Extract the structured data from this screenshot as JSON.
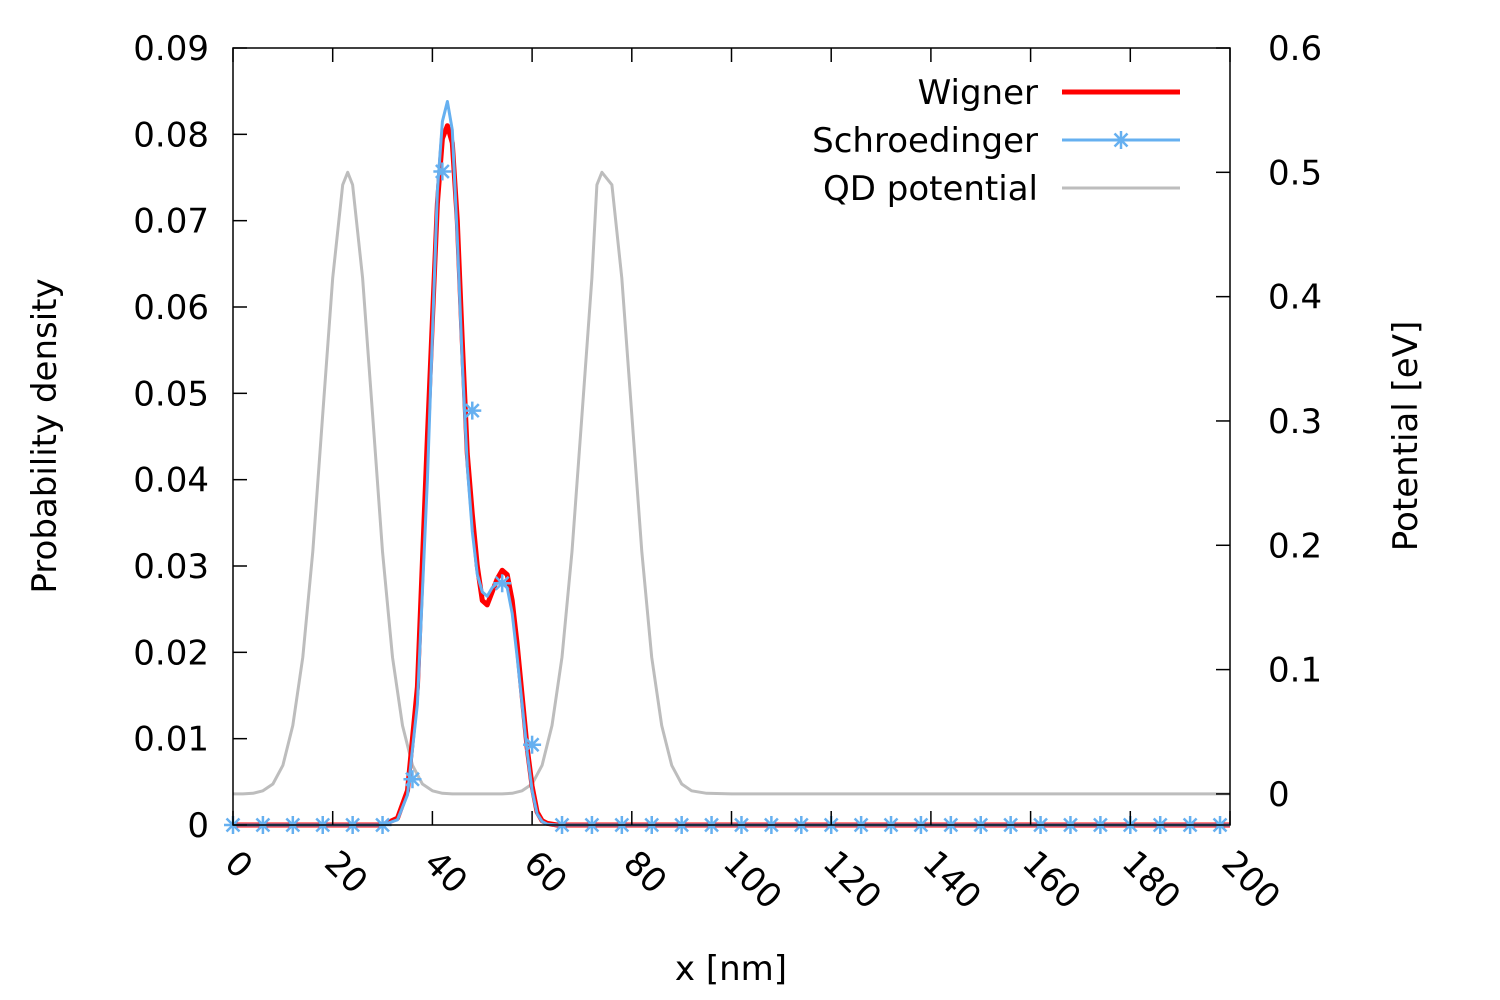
{
  "chart_data": {
    "type": "line",
    "xlabel": "x [nm]",
    "ylabel": "Probability density",
    "y2label": "Potential [eV]",
    "xlim": [
      0,
      200
    ],
    "ylim": [
      0,
      0.09
    ],
    "y2lim": [
      -0.025,
      0.6
    ],
    "x_ticks": [
      "0",
      "20",
      "40",
      "60",
      "80",
      "100",
      "120",
      "140",
      "160",
      "180",
      "200"
    ],
    "y_ticks": [
      "0",
      "0.01",
      "0.02",
      "0.03",
      "0.04",
      "0.05",
      "0.06",
      "0.07",
      "0.08",
      "0.09"
    ],
    "y2_ticks": [
      "0",
      "0.1",
      "0.2",
      "0.3",
      "0.4",
      "0.5",
      "0.6"
    ],
    "grid": false,
    "legend_position": "top-right",
    "series": [
      {
        "name": "Wigner",
        "color": "#ff0000",
        "axis": "y",
        "marker": "none",
        "x": [
          0,
          10,
          20,
          30,
          33,
          35,
          37,
          39,
          41,
          42,
          43,
          44,
          45,
          46,
          47,
          48,
          49,
          50,
          51,
          52,
          53,
          54,
          55,
          56,
          57,
          58,
          59,
          60,
          61,
          62,
          63,
          65,
          70,
          80,
          100,
          150,
          200
        ],
        "y": [
          0,
          0,
          0,
          0,
          0.0008,
          0.004,
          0.016,
          0.045,
          0.072,
          0.0795,
          0.081,
          0.079,
          0.07,
          0.056,
          0.043,
          0.036,
          0.03,
          0.026,
          0.0255,
          0.027,
          0.0285,
          0.0295,
          0.029,
          0.026,
          0.021,
          0.015,
          0.009,
          0.0045,
          0.0015,
          0.0005,
          0.0002,
          0,
          0,
          0,
          0,
          0,
          0
        ]
      },
      {
        "name": "Schroedinger",
        "color": "#66b0f0",
        "axis": "y",
        "marker": "asterisk",
        "x": [
          0,
          10,
          20,
          30,
          33,
          35,
          37,
          39,
          41,
          42,
          43,
          44,
          45,
          46,
          47,
          48,
          49,
          50,
          51,
          52,
          53,
          54,
          55,
          56,
          57,
          58,
          59,
          60,
          61,
          62,
          63,
          65,
          70,
          80,
          100,
          150,
          200
        ],
        "y": [
          0,
          0,
          0,
          0,
          0.0006,
          0.0035,
          0.014,
          0.04,
          0.0735,
          0.0815,
          0.0838,
          0.0805,
          0.068,
          0.0535,
          0.0415,
          0.034,
          0.029,
          0.027,
          0.0265,
          0.0275,
          0.028,
          0.028,
          0.0275,
          0.0245,
          0.0195,
          0.014,
          0.0085,
          0.004,
          0.0013,
          0.0004,
          0.0001,
          0,
          0,
          0,
          0,
          0,
          0
        ],
        "marker_x": [
          0,
          6,
          12,
          18,
          24,
          30,
          36,
          42,
          48,
          54,
          60,
          66,
          72,
          78,
          84,
          90,
          96,
          102,
          108,
          114,
          120,
          126,
          132,
          138,
          144,
          150,
          156,
          162,
          168,
          174,
          180,
          186,
          192,
          198
        ],
        "marker_y": [
          0,
          0,
          0,
          0,
          0,
          0,
          0.0053,
          0.0757,
          0.048,
          0.028,
          0.0093,
          0,
          0,
          0,
          0,
          0,
          0,
          0,
          0,
          0,
          0,
          0,
          0,
          0,
          0,
          0,
          0,
          0,
          0,
          0,
          0,
          0,
          0,
          0
        ]
      },
      {
        "name": "QD potential",
        "color": "#bdbdbd",
        "axis": "y2",
        "marker": "none",
        "x": [
          0,
          2,
          4,
          6,
          8,
          10,
          12,
          14,
          16,
          18,
          20,
          22,
          23,
          24,
          26,
          28,
          30,
          32,
          34,
          36,
          38,
          40,
          42,
          44,
          46,
          48,
          50,
          52,
          54,
          56,
          58,
          60,
          62,
          64,
          66,
          68,
          70,
          72,
          73,
          74,
          76,
          78,
          80,
          82,
          84,
          86,
          88,
          90,
          92,
          95,
          100,
          150,
          200
        ],
        "y": [
          0,
          0,
          0.0005,
          0.0025,
          0.008,
          0.023,
          0.055,
          0.11,
          0.195,
          0.305,
          0.415,
          0.49,
          0.5,
          0.49,
          0.415,
          0.305,
          0.195,
          0.11,
          0.055,
          0.023,
          0.008,
          0.0025,
          0.0005,
          0,
          0,
          0,
          0,
          0,
          0,
          0.0005,
          0.0025,
          0.008,
          0.023,
          0.055,
          0.11,
          0.195,
          0.305,
          0.415,
          0.49,
          0.5,
          0.49,
          0.415,
          0.305,
          0.195,
          0.11,
          0.055,
          0.023,
          0.008,
          0.0025,
          0.0005,
          0,
          0,
          0
        ]
      }
    ]
  }
}
